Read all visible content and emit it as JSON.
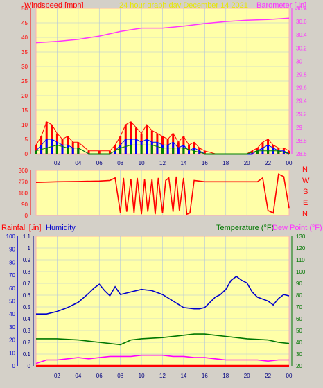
{
  "header": {
    "left_title": "Windspeed [mph]",
    "center_title": "24 hour graph day   December 14 2021",
    "right_title": "Barometer [.in]"
  },
  "bottom_header": {
    "rain_label": "Rainfall [.in]",
    "humidity_label": "Humidity",
    "temp_label": "Temperature (°F)",
    "dew_label": "Dew Point (°F)"
  },
  "compass": [
    "N",
    "W",
    "S",
    "E",
    "N"
  ],
  "colors": {
    "background": "#d4d0c8",
    "plot_bg": "#ffffa8",
    "grid": "#b0c4de",
    "wind_gust": "#ff0000",
    "wind_speed": "#0000ff",
    "wind_avg": "#008000",
    "barometer": "#ff33ff",
    "direction": "#ff0000",
    "humidity": "#0000cc",
    "temperature": "#007700",
    "dewpoint": "#ff00ff",
    "rainfall": "#000080"
  },
  "chart_data": [
    {
      "type": "line",
      "x_unit": "hour",
      "x_ticks": [
        "02",
        "04",
        "06",
        "08",
        "10",
        "12",
        "14",
        "16",
        "18",
        "20",
        "22",
        "00"
      ],
      "ylabel": "Windspeed [mph]",
      "ylim": [
        0,
        50
      ],
      "y_ticks": [
        "0",
        "5",
        "10",
        "15",
        "20",
        "25",
        "30",
        "35",
        "40",
        "45",
        "50"
      ],
      "y2label": "Barometer [.in]",
      "y2lim": [
        28.6,
        30.8
      ],
      "y2_ticks": [
        "28.6",
        "28.8",
        "29",
        "29.2",
        "29.4",
        "29.6",
        "29.8",
        "30",
        "30.2",
        "30.4",
        "30.6",
        "30.8"
      ],
      "series": [
        {
          "name": "Barometer",
          "axis": "right",
          "x": [
            0,
            2,
            4,
            6,
            8,
            10,
            12,
            14,
            16,
            18,
            20,
            22,
            24
          ],
          "y": [
            30.28,
            30.3,
            30.33,
            30.38,
            30.45,
            30.5,
            30.5,
            30.53,
            30.57,
            30.6,
            30.62,
            30.63,
            30.65
          ]
        },
        {
          "name": "Gust",
          "axis": "left",
          "color": "wind_gust",
          "x": [
            0,
            0.5,
            1,
            1.5,
            2,
            2.5,
            3,
            3.5,
            4,
            5,
            6,
            7,
            7.5,
            8,
            8.5,
            9,
            9.5,
            10,
            10.5,
            11,
            11.5,
            12,
            12.5,
            13,
            13.5,
            14,
            14.5,
            15,
            15.5,
            16,
            17,
            18,
            19,
            20,
            20.5,
            21,
            21.5,
            22,
            22.5,
            23,
            23.5,
            24
          ],
          "y": [
            3,
            6,
            11,
            10,
            7,
            5,
            6,
            4,
            4,
            1,
            1,
            1,
            3,
            6,
            10,
            11,
            9,
            7,
            10,
            8,
            7,
            6,
            5,
            7,
            4,
            6,
            3,
            4,
            2,
            1,
            0,
            0,
            0,
            0,
            1,
            2,
            4,
            5,
            3,
            2,
            2,
            1
          ]
        },
        {
          "name": "Speed",
          "axis": "left",
          "color": "wind_speed",
          "x": [
            0,
            0.5,
            1,
            1.5,
            2,
            2.5,
            3,
            3.5,
            4,
            5,
            6,
            7,
            7.5,
            8,
            8.5,
            9,
            9.5,
            10,
            10.5,
            11,
            11.5,
            12,
            12.5,
            13,
            13.5,
            14,
            14.5,
            15,
            15.5,
            16,
            17,
            18,
            19,
            20,
            20.5,
            21,
            21.5,
            22,
            22.5,
            23,
            23.5,
            24
          ],
          "y": [
            1,
            3,
            5,
            5,
            4,
            3,
            3,
            2,
            2,
            0,
            0,
            0,
            1,
            3,
            5,
            5,
            5,
            4,
            5,
            4,
            4,
            3,
            3,
            4,
            2,
            3,
            1,
            2,
            1,
            0,
            0,
            0,
            0,
            0,
            0,
            1,
            2,
            3,
            2,
            1,
            1,
            0
          ]
        },
        {
          "name": "Average",
          "axis": "left",
          "color": "wind_avg",
          "x": [
            0,
            1,
            2,
            3,
            4,
            5,
            6,
            7,
            8,
            9,
            10,
            11,
            12,
            13,
            14,
            15,
            16,
            17,
            18,
            19,
            20,
            21,
            22,
            23,
            24
          ],
          "y": [
            1,
            2,
            3,
            2,
            2,
            0,
            0,
            0,
            2,
            3,
            3,
            3,
            2,
            2,
            2,
            1,
            0,
            0,
            0,
            0,
            0,
            1,
            1,
            1,
            0
          ]
        }
      ]
    },
    {
      "type": "line",
      "x_unit": "hour",
      "ylabel": "Wind direction",
      "ylim": [
        0,
        360
      ],
      "y_ticks": [
        "0",
        "90",
        "180",
        "270",
        "360"
      ],
      "series": [
        {
          "name": "Direction",
          "x": [
            0,
            2,
            4,
            6,
            7,
            7.5,
            8,
            8.3,
            8.6,
            9,
            9.3,
            9.6,
            10,
            10.3,
            10.6,
            11,
            11.3,
            11.6,
            12,
            12.3,
            12.6,
            13,
            13.3,
            13.6,
            14,
            14.3,
            14.6,
            15,
            16,
            18,
            20,
            21,
            21.5,
            22,
            22.5,
            23,
            23.5,
            24
          ],
          "y": [
            265,
            270,
            272,
            275,
            280,
            300,
            20,
            300,
            30,
            290,
            20,
            300,
            10,
            290,
            30,
            290,
            10,
            300,
            20,
            280,
            300,
            30,
            310,
            40,
            300,
            10,
            20,
            280,
            270,
            270,
            270,
            270,
            300,
            40,
            20,
            330,
            310,
            60
          ]
        }
      ]
    },
    {
      "type": "line",
      "x_unit": "hour",
      "x_ticks": [
        "02",
        "04",
        "06",
        "08",
        "10",
        "12",
        "14",
        "16",
        "18",
        "20",
        "22",
        "00"
      ],
      "ylabel": "Humidity",
      "ylim": [
        0,
        100
      ],
      "y_ticks": [
        "0",
        "10",
        "20",
        "30",
        "40",
        "50",
        "60",
        "70",
        "80",
        "90",
        "100"
      ],
      "rain_ylabel": "Rainfall [.in]",
      "rain_ylim": [
        0,
        1.1
      ],
      "rain_ticks": [
        "0",
        "0.1",
        "0.2",
        "0.3",
        "0.4",
        "0.5",
        "0.6",
        "0.7",
        "0.8",
        "0.9",
        "1",
        "1.1"
      ],
      "y2label": "Temperature (°F)",
      "y2lim": [
        20,
        130
      ],
      "y2_ticks": [
        "20",
        "30",
        "40",
        "50",
        "60",
        "70",
        "80",
        "90",
        "100",
        "110",
        "120",
        "130"
      ],
      "series": [
        {
          "name": "Humidity",
          "axis": "left",
          "x": [
            0,
            1,
            2,
            3,
            4,
            5,
            5.5,
            6,
            6.5,
            7,
            7.5,
            8,
            9,
            10,
            11,
            12,
            13,
            14,
            15,
            15.5,
            16,
            17,
            17.5,
            18,
            18.5,
            19,
            19.5,
            20,
            20.5,
            21,
            22,
            22.5,
            23,
            23.5,
            24
          ],
          "y": [
            40,
            40,
            42,
            45,
            49,
            56,
            60,
            63,
            58,
            54,
            61,
            55,
            57,
            59,
            58,
            55,
            50,
            45,
            44,
            44,
            45,
            53,
            55,
            59,
            66,
            69,
            66,
            64,
            57,
            53,
            50,
            47,
            52,
            55,
            54
          ]
        },
        {
          "name": "Temperature",
          "axis": "right",
          "x": [
            0,
            2,
            4,
            6,
            8,
            9,
            10,
            12,
            14,
            15,
            16,
            17,
            18,
            20,
            22,
            23,
            24
          ],
          "y": [
            43,
            43,
            42,
            40,
            38,
            42,
            43,
            44,
            46,
            47,
            47,
            46,
            45,
            43,
            42,
            40,
            39
          ]
        },
        {
          "name": "Dew Point",
          "axis": "right",
          "x": [
            0,
            1,
            2,
            3,
            4,
            5,
            6,
            7,
            8,
            9,
            10,
            11,
            12,
            13,
            14,
            15,
            16,
            17,
            18,
            19,
            20,
            21,
            22,
            23,
            24
          ],
          "y": [
            22,
            25,
            25,
            26,
            27,
            26,
            27,
            28,
            28,
            28,
            29,
            29,
            29,
            28,
            28,
            27,
            27,
            26,
            25,
            25,
            25,
            25,
            24,
            25,
            25
          ]
        },
        {
          "name": "Rainfall",
          "axis": "rain",
          "x": [
            0,
            24
          ],
          "y": [
            0,
            0
          ]
        }
      ]
    }
  ]
}
